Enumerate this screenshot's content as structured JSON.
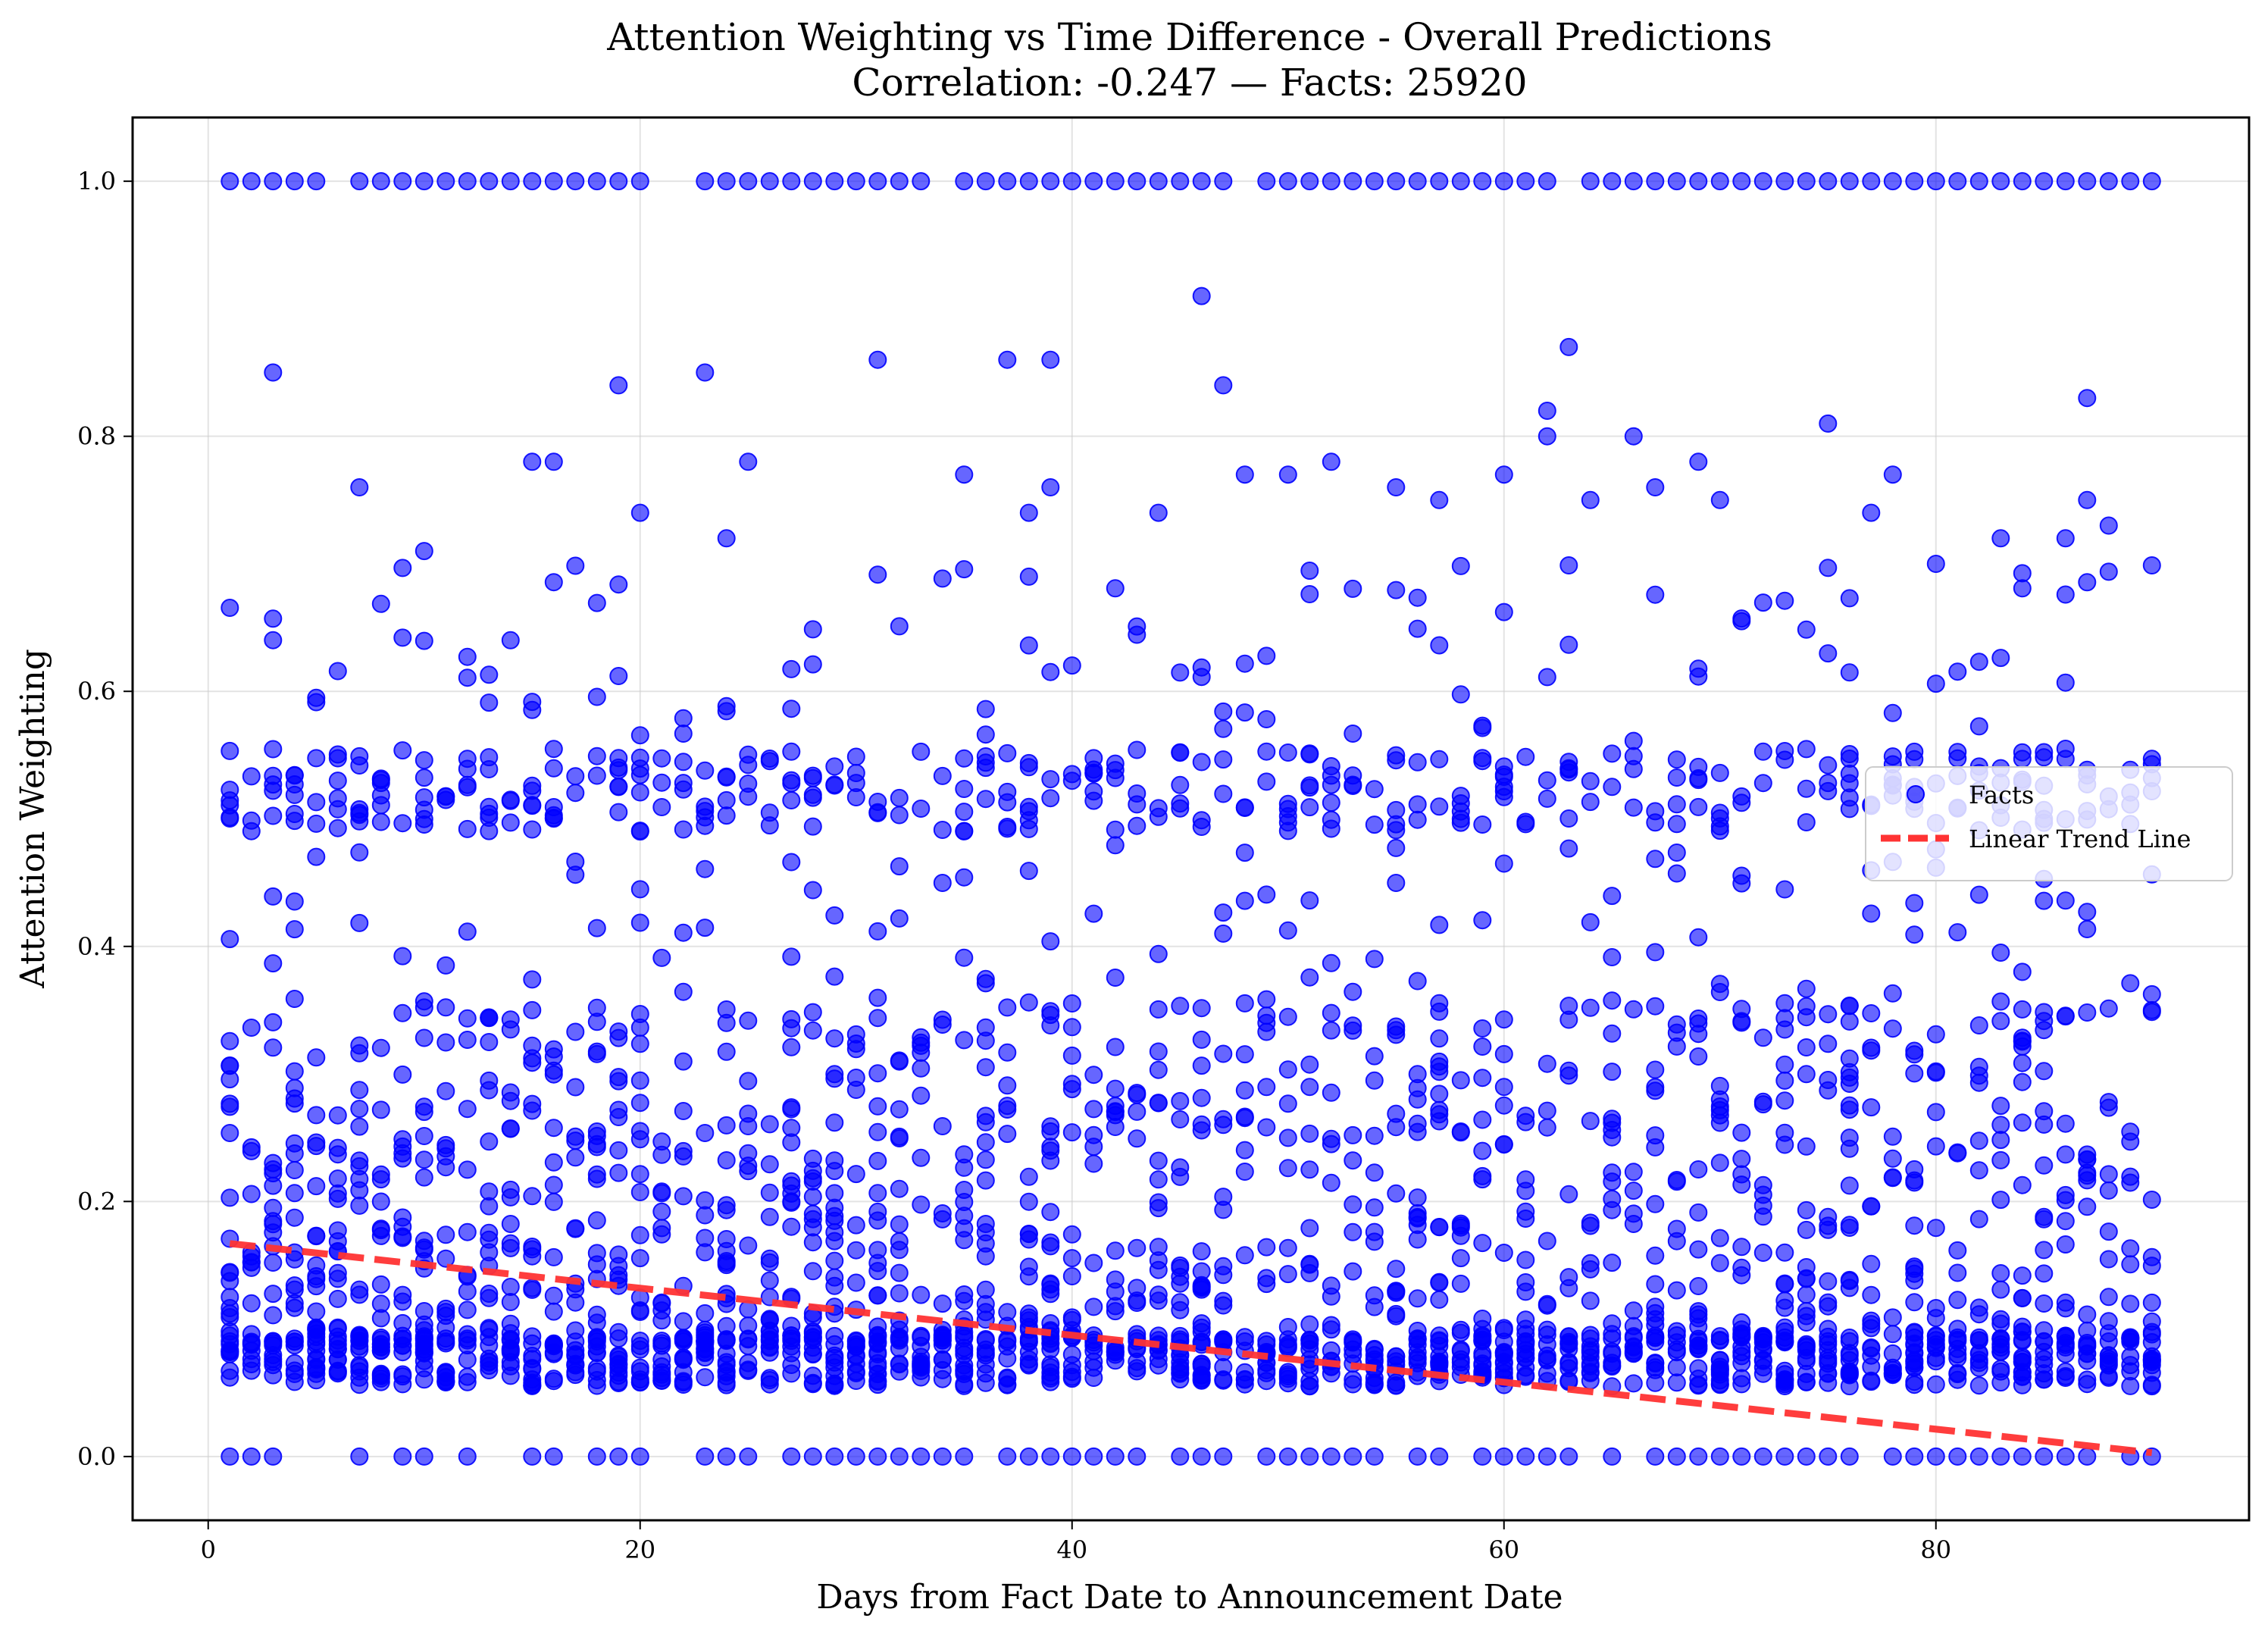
{
  "chart_data": {
    "type": "scatter",
    "title": "Attention Weighting vs Time Difference - Overall Predictions",
    "subtitle": "Correlation: -0.247 — Facts: 25920",
    "xlabel": "Days from Fact Date to Announcement Date",
    "ylabel": "Attention Weighting",
    "xlim": [
      -3.5,
      94.5
    ],
    "ylim": [
      -0.05,
      1.05
    ],
    "xticks": [
      0,
      20,
      40,
      60,
      80
    ],
    "yticks": [
      0.0,
      0.2,
      0.4,
      0.6,
      0.8,
      1.0
    ],
    "xtick_labels": [
      "0",
      "20",
      "40",
      "60",
      "80"
    ],
    "ytick_labels": [
      "0.0",
      "0.2",
      "0.4",
      "0.6",
      "0.8",
      "1.0"
    ],
    "grid": true,
    "legend_position": "center-right",
    "series": [
      {
        "name": "Facts",
        "kind": "scatter",
        "color": "#0000ff",
        "x_range": [
          1,
          90
        ],
        "y_range": [
          0,
          1
        ],
        "dense_levels": [
          0.0,
          0.07,
          0.15,
          0.25,
          0.33,
          0.5,
          0.54,
          1.0
        ],
        "sample_outliers": [
          [
            3,
            0.85
          ],
          [
            7,
            0.76
          ],
          [
            10,
            0.71
          ],
          [
            15,
            0.78
          ],
          [
            16,
            0.78
          ],
          [
            19,
            0.84
          ],
          [
            20,
            0.74
          ],
          [
            23,
            0.85
          ],
          [
            24,
            0.72
          ],
          [
            25,
            0.78
          ],
          [
            31,
            0.86
          ],
          [
            35,
            0.77
          ],
          [
            37,
            0.86
          ],
          [
            38,
            0.74
          ],
          [
            39,
            0.86
          ],
          [
            39,
            0.76
          ],
          [
            44,
            0.74
          ],
          [
            46,
            0.91
          ],
          [
            47,
            0.84
          ],
          [
            48,
            0.77
          ],
          [
            50,
            0.77
          ],
          [
            52,
            0.78
          ],
          [
            55,
            0.76
          ],
          [
            57,
            0.75
          ],
          [
            60,
            0.77
          ],
          [
            62,
            0.82
          ],
          [
            62,
            0.8
          ],
          [
            63,
            0.87
          ],
          [
            64,
            0.75
          ],
          [
            66,
            0.8
          ],
          [
            67,
            0.76
          ],
          [
            69,
            0.78
          ],
          [
            70,
            0.75
          ],
          [
            75,
            0.81
          ],
          [
            77,
            0.74
          ],
          [
            78,
            0.77
          ],
          [
            80,
            0.7
          ],
          [
            83,
            0.72
          ],
          [
            86,
            0.72
          ],
          [
            87,
            0.83
          ],
          [
            87,
            0.75
          ],
          [
            88,
            0.73
          ]
        ]
      },
      {
        "name": "Linear Trend Line",
        "kind": "line",
        "color": "#ff3333",
        "x": [
          1,
          90
        ],
        "y": [
          0.167,
          0.003
        ]
      }
    ],
    "legend": [
      {
        "label": "Facts",
        "marker": "dot",
        "color": "#0000ff"
      },
      {
        "label": "Linear Trend Line",
        "marker": "dashed-line",
        "color": "#ff3333"
      }
    ]
  }
}
